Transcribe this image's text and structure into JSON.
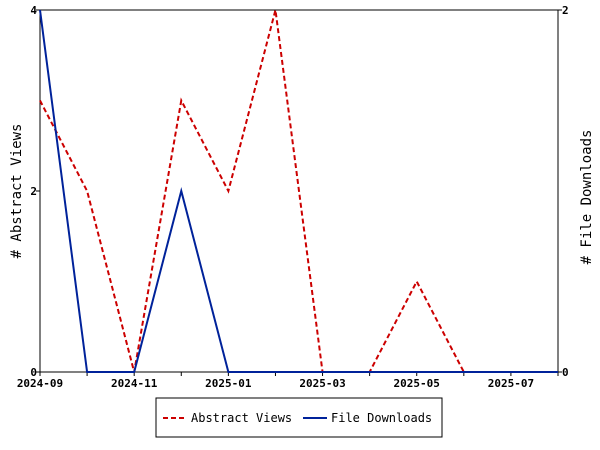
{
  "chart_data": {
    "type": "line",
    "x": [
      "2024-09",
      "2024-10",
      "2024-11",
      "2024-12",
      "2025-01",
      "2025-02",
      "2025-03",
      "2025-04",
      "2025-05",
      "2025-06",
      "2025-07",
      "2025-08"
    ],
    "x_tick_labels": [
      "2024-09",
      "2024-11",
      "2025-01",
      "2025-03",
      "2025-05",
      "2025-07"
    ],
    "series": [
      {
        "name": "Abstract Views",
        "axis": "left",
        "color": "#cc0000",
        "dash": "dashed",
        "values": [
          3,
          2,
          0,
          3,
          2,
          4,
          0,
          0,
          1,
          0,
          0,
          0
        ]
      },
      {
        "name": "File Downloads",
        "axis": "right",
        "color": "#00229a",
        "dash": "solid",
        "values": [
          2,
          0,
          0,
          1,
          0,
          0,
          0,
          0,
          0,
          0,
          0,
          0
        ]
      }
    ],
    "ylabel": "# Abstract Views",
    "ylim": [
      0,
      4
    ],
    "yticks": [
      "0",
      "2",
      "4"
    ],
    "y2label": "# File Downloads",
    "y2lim": [
      0,
      2
    ],
    "y2ticks": [
      "0",
      "2"
    ],
    "grid": false,
    "legend_position": "bottom-center"
  }
}
